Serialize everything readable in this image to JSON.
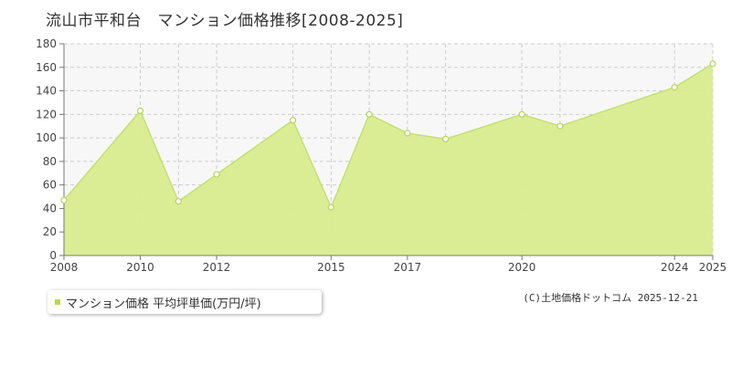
{
  "title": "流山市平和台　マンション価格推移[2008-2025]",
  "legend": {
    "label": "マンション価格 平均坪単価(万円/坪)"
  },
  "credit": "(C)土地価格ドットコム 2025-12-21",
  "colors": {
    "area_fill": "#d8ec8f",
    "line": "#c4e070",
    "marker_fill": "#ffffff",
    "marker_stroke": "#b5d65a",
    "grid": "#cccccc",
    "plot_bg": "#f8f7f8",
    "legend_swatch": "#b8d84e"
  },
  "chart_data": {
    "type": "area",
    "title": "流山市平和台　マンション価格推移[2008-2025]",
    "xlabel": "",
    "ylabel": "",
    "xlim": [
      2008,
      2025
    ],
    "ylim": [
      0,
      180
    ],
    "x_tick_labels": [
      "2008",
      "2010",
      "2012",
      "2015",
      "2017",
      "2020",
      "2024",
      "2025"
    ],
    "y_tick_labels": [
      "0",
      "20",
      "40",
      "60",
      "80",
      "100",
      "120",
      "140",
      "160",
      "180"
    ],
    "grid": true,
    "series": [
      {
        "name": "マンション価格 平均坪単価(万円/坪)",
        "points": [
          {
            "x": 2008,
            "y": 47
          },
          {
            "x": 2010,
            "y": 123
          },
          {
            "x": 2011,
            "y": 46
          },
          {
            "x": 2012,
            "y": 69
          },
          {
            "x": 2014,
            "y": 115
          },
          {
            "x": 2015,
            "y": 41
          },
          {
            "x": 2016,
            "y": 120
          },
          {
            "x": 2017,
            "y": 104
          },
          {
            "x": 2018,
            "y": 99
          },
          {
            "x": 2020,
            "y": 120
          },
          {
            "x": 2021,
            "y": 110
          },
          {
            "x": 2024,
            "y": 143
          },
          {
            "x": 2025,
            "y": 163
          }
        ]
      }
    ]
  }
}
